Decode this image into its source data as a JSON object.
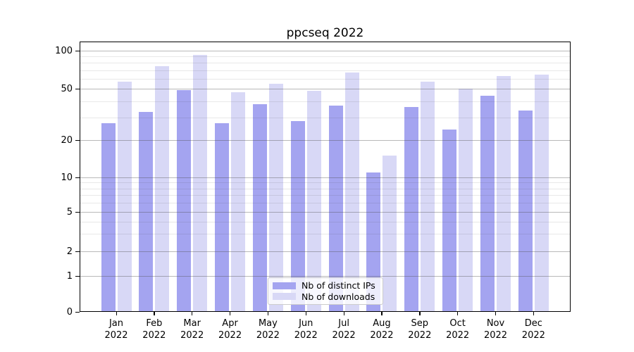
{
  "title": "ppcseq 2022",
  "colors": {
    "distinct_ips": "#a4a4f0",
    "downloads": "#d8d8f6",
    "grid_major": "rgba(80,80,80,0.40)",
    "grid_minor": "rgba(80,80,80,0.13)",
    "axis": "#000000",
    "legend_border": "#cccccc"
  },
  "y_axis": {
    "major_ticks": [
      100,
      50,
      20,
      10,
      5,
      2,
      1,
      0
    ],
    "minor_ticks": [
      90,
      80,
      70,
      60,
      40,
      30,
      9,
      8,
      7,
      6,
      4,
      3
    ]
  },
  "x_axis": {
    "months": [
      "Jan",
      "Feb",
      "Mar",
      "Apr",
      "May",
      "Jun",
      "Jul",
      "Aug",
      "Sep",
      "Oct",
      "Nov",
      "Dec"
    ],
    "year": "2022"
  },
  "legend": {
    "items": [
      {
        "label": "Nb of distinct IPs",
        "color_key": "distinct_ips"
      },
      {
        "label": "Nb of downloads",
        "color_key": "downloads"
      }
    ]
  },
  "chart_data": {
    "type": "bar",
    "title": "ppcseq 2022",
    "categories": [
      "Jan 2022",
      "Feb 2022",
      "Mar 2022",
      "Apr 2022",
      "May 2022",
      "Jun 2022",
      "Jul 2022",
      "Aug 2022",
      "Sep 2022",
      "Oct 2022",
      "Nov 2022",
      "Dec 2022"
    ],
    "series": [
      {
        "name": "Nb of distinct IPs",
        "color": "#a4a4f0",
        "values": [
          27,
          33,
          49,
          27,
          38,
          28,
          37,
          11,
          36,
          24,
          44,
          34
        ]
      },
      {
        "name": "Nb of downloads",
        "color": "#d8d8f6",
        "values": [
          57,
          75,
          93,
          47,
          55,
          48,
          67,
          15,
          57,
          50,
          63,
          65
        ]
      }
    ],
    "xlabel": "",
    "ylabel": "",
    "yscale": "log-like",
    "yticks": [
      0,
      1,
      2,
      5,
      10,
      20,
      50,
      100
    ],
    "ylim": [
      0,
      110
    ],
    "grid": true,
    "grid_on_top_of_bars": true,
    "legend_position": "lower center"
  }
}
